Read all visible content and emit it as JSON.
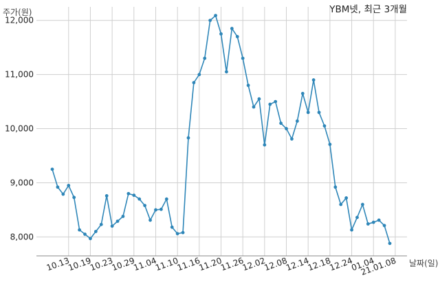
{
  "chart_data": {
    "type": "line",
    "title": "YBM넷, 최근 3개월",
    "ylabel": "주가(원)",
    "xlabel": "날짜(일)",
    "ylim": [
      7650,
      12250
    ],
    "yticks": [
      8000,
      9000,
      10000,
      11000,
      12000
    ],
    "ytick_labels": [
      "8,000",
      "9,000",
      "10,000",
      "11,000",
      "12,000"
    ],
    "xtick_labels": [
      "10.13",
      "10.19",
      "10.23",
      "10.29",
      "11.04",
      "11.10",
      "11.16",
      "11.20",
      "11.26",
      "12.02",
      "12.08",
      "12.14",
      "12.18",
      "12.24",
      "01.04",
      "21.01.08"
    ],
    "xtick_index": [
      3,
      7,
      11,
      15,
      19,
      23,
      27,
      31,
      35,
      39,
      43,
      47,
      51,
      55,
      59,
      63
    ],
    "grid": true,
    "line_color": "#2e86b8",
    "series": [
      {
        "name": "",
        "values": [
          9250,
          8920,
          8790,
          8950,
          8730,
          8130,
          8050,
          7970,
          8100,
          8230,
          8760,
          8200,
          8290,
          8380,
          8800,
          8770,
          8700,
          8580,
          8310,
          8500,
          8510,
          8700,
          8180,
          8060,
          8080,
          9830,
          10850,
          11000,
          11300,
          12000,
          12090,
          11750,
          11050,
          11850,
          11700,
          11300,
          10800,
          10400,
          10550,
          9700,
          10450,
          10500,
          10100,
          10000,
          9810,
          10140,
          10650,
          10300,
          10900,
          10300,
          10050,
          9710,
          8920,
          8600,
          8720,
          8130,
          8360,
          8600,
          8240,
          8270,
          8310,
          8210,
          7880
        ]
      }
    ]
  }
}
